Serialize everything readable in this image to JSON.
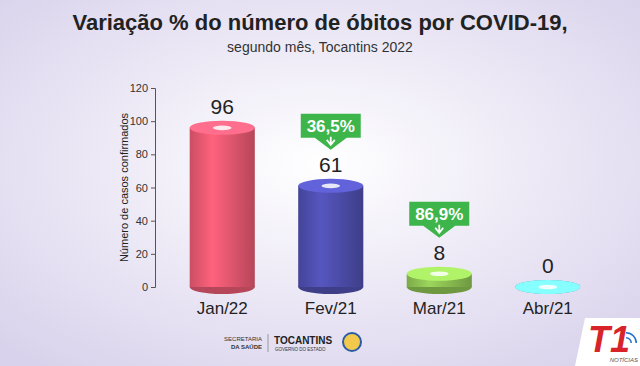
{
  "chart_data": {
    "type": "bar",
    "title": "Variação % do número de óbitos por COVID-19,",
    "subtitle": "segundo mês, Tocantins 2022",
    "y_label": "Número de casos confirmados",
    "categories": [
      "Jan/22",
      "Fev/21",
      "Mar/21",
      "Abr/21"
    ],
    "values": [
      96,
      61,
      8,
      0
    ],
    "colors": [
      "#ea5a72",
      "#4f4fb0",
      "#8fc454",
      "#6cd0ec"
    ],
    "ylim": [
      0,
      120
    ],
    "yticks": [
      0,
      20,
      40,
      60,
      80,
      100,
      120
    ],
    "grid": false,
    "data_labels": true,
    "annotations": [
      {
        "category": "Fev/21",
        "value": 36.5,
        "label": "36,5%"
      },
      {
        "category": "Mar/21",
        "value": 86.9,
        "label": "86,9%"
      }
    ]
  },
  "footer": {
    "logos": [
      "SECRETARIA",
      "DA SAÚDE",
      "TOCANTINS",
      "GOVERNO DO ESTADO"
    ],
    "brand": "T1",
    "brand_sub": "NOTÍCIAS"
  }
}
